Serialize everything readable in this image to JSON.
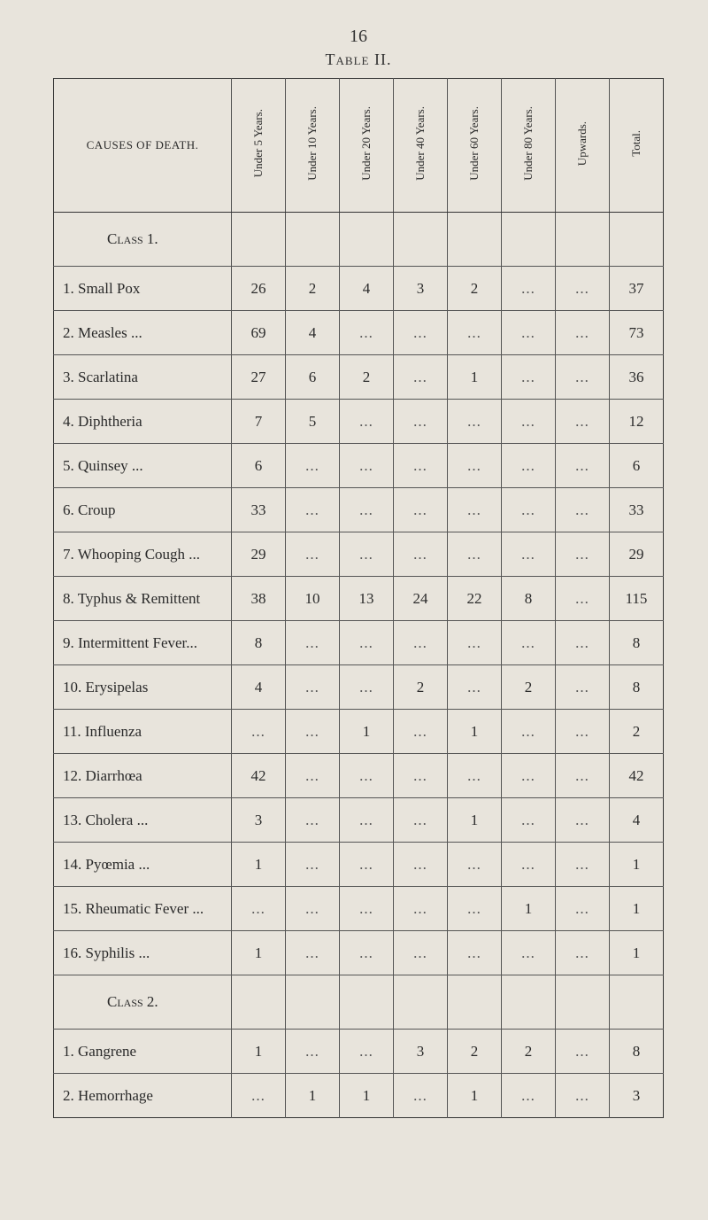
{
  "page_number": "16",
  "table_title": "Table II.",
  "header": {
    "cause": "CAUSES OF DEATH.",
    "cols": [
      "Under 5 Years.",
      "Under 10 Years.",
      "Under 20 Years.",
      "Under 40 Years.",
      "Under 60 Years.",
      "Under 80 Years.",
      "Upwards.",
      "Total."
    ]
  },
  "class_rows": {
    "c1": "Class 1.",
    "c2": "Class 2."
  },
  "rows": {
    "r1": {
      "label": "1. Small Pox",
      "u5": "26",
      "u10": "2",
      "u20": "4",
      "u40": "3",
      "u60": "2",
      "u80": "...",
      "up": "...",
      "total": "37"
    },
    "r2": {
      "label": "2. Measles ...",
      "u5": "69",
      "u10": "4",
      "u20": "...",
      "u40": "...",
      "u60": "...",
      "u80": "...",
      "up": "...",
      "total": "73"
    },
    "r3": {
      "label": "3. Scarlatina",
      "u5": "27",
      "u10": "6",
      "u20": "2",
      "u40": "...",
      "u60": "1",
      "u80": "...",
      "up": "...",
      "total": "36"
    },
    "r4": {
      "label": "4. Diphtheria",
      "u5": "7",
      "u10": "5",
      "u20": "...",
      "u40": "...",
      "u60": "...",
      "u80": "...",
      "up": "...",
      "total": "12"
    },
    "r5": {
      "label": "5. Quinsey ...",
      "u5": "6",
      "u10": "...",
      "u20": "...",
      "u40": "...",
      "u60": "...",
      "u80": "...",
      "up": "...",
      "total": "6"
    },
    "r6": {
      "label": "6. Croup",
      "u5": "33",
      "u10": "...",
      "u20": "...",
      "u40": "...",
      "u60": "...",
      "u80": "...",
      "up": "...",
      "total": "33"
    },
    "r7": {
      "label": "7. Whooping Cough ...",
      "u5": "29",
      "u10": "...",
      "u20": "...",
      "u40": "...",
      "u60": "...",
      "u80": "...",
      "up": "...",
      "total": "29"
    },
    "r8": {
      "label": "8. Typhus & Remittent",
      "u5": "38",
      "u10": "10",
      "u20": "13",
      "u40": "24",
      "u60": "22",
      "u80": "8",
      "up": "...",
      "total": "115"
    },
    "r9": {
      "label": "9. Intermittent Fever...",
      "u5": "8",
      "u10": "...",
      "u20": "...",
      "u40": "...",
      "u60": "...",
      "u80": "...",
      "up": "...",
      "total": "8"
    },
    "r10": {
      "label": "10. Erysipelas",
      "u5": "4",
      "u10": "...",
      "u20": "...",
      "u40": "2",
      "u60": "...",
      "u80": "2",
      "up": "...",
      "total": "8"
    },
    "r11": {
      "label": "11. Influenza",
      "u5": "...",
      "u10": "...",
      "u20": "1",
      "u40": "...",
      "u60": "1",
      "u80": "...",
      "up": "...",
      "total": "2"
    },
    "r12": {
      "label": "12. Diarrhœa",
      "u5": "42",
      "u10": "...",
      "u20": "...",
      "u40": "...",
      "u60": "...",
      "u80": "...",
      "up": "...",
      "total": "42"
    },
    "r13": {
      "label": "13. Cholera ...",
      "u5": "3",
      "u10": "...",
      "u20": "...",
      "u40": "...",
      "u60": "1",
      "u80": "...",
      "up": "...",
      "total": "4"
    },
    "r14": {
      "label": "14. Pyœmia ...",
      "u5": "1",
      "u10": "...",
      "u20": "...",
      "u40": "...",
      "u60": "...",
      "u80": "...",
      "up": "...",
      "total": "1"
    },
    "r15": {
      "label": "15. Rheumatic Fever ...",
      "u5": "...",
      "u10": "...",
      "u20": "...",
      "u40": "...",
      "u60": "...",
      "u80": "1",
      "up": "...",
      "total": "1"
    },
    "r16": {
      "label": "16. Syphilis ...",
      "u5": "1",
      "u10": "...",
      "u20": "...",
      "u40": "...",
      "u60": "...",
      "u80": "...",
      "up": "...",
      "total": "1"
    },
    "r17": {
      "label": "1. Gangrene",
      "u5": "1",
      "u10": "...",
      "u20": "...",
      "u40": "3",
      "u60": "2",
      "u80": "2",
      "up": "...",
      "total": "8"
    },
    "r18": {
      "label": "2. Hemorrhage",
      "u5": "...",
      "u10": "1",
      "u20": "1",
      "u40": "...",
      "u60": "1",
      "u80": "...",
      "up": "...",
      "total": "3"
    }
  }
}
